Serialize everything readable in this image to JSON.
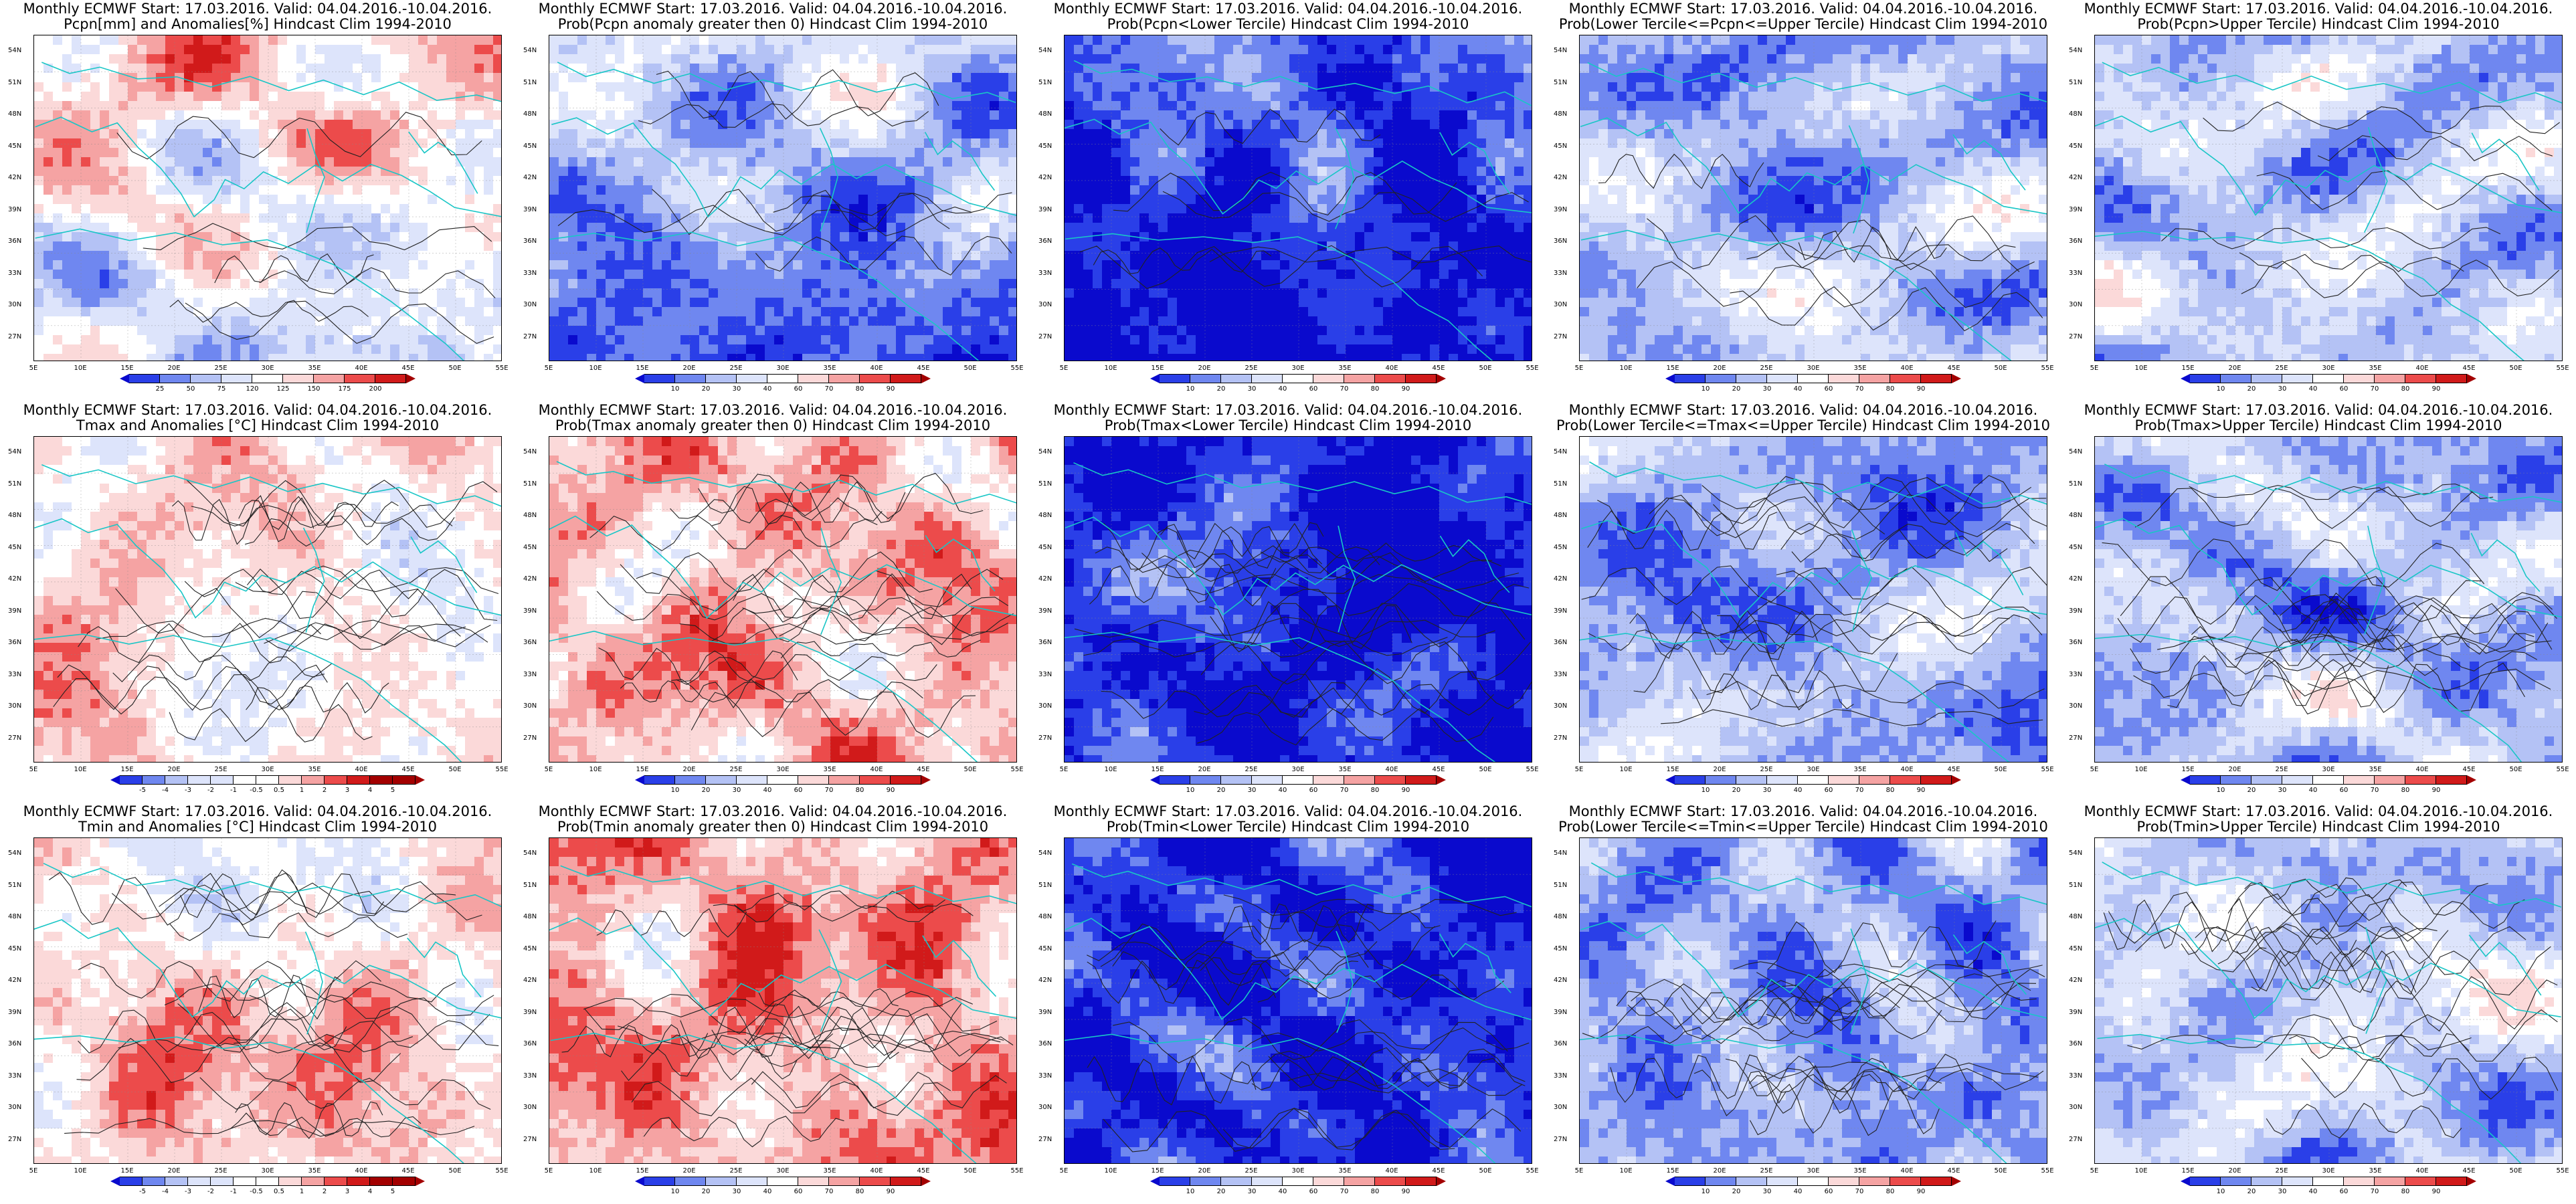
{
  "colors": {
    "deep_blue": "#0a0acd",
    "blue": "#2a3fe8",
    "mid_blue": "#6f87f0",
    "light_blue": "#b4c2f5",
    "pale_blue": "#dde4fb",
    "white": "#ffffff",
    "pale_red": "#fbd9d9",
    "light_red": "#f5a3a3",
    "red": "#ec4b4b",
    "dark_red": "#d11a1a",
    "deep_red": "#a30000",
    "coast": "#19c6c6",
    "contour": "#222222"
  },
  "lat_labels": [
    "54N",
    "51N",
    "48N",
    "45N",
    "42N",
    "39N",
    "36N",
    "33N",
    "30N",
    "27N"
  ],
  "lon_labels": [
    "5E",
    "10E",
    "15E",
    "20E",
    "25E",
    "30E",
    "35E",
    "40E",
    "45E",
    "50E",
    "55E"
  ],
  "panels": [
    {
      "id": "p-r1c1",
      "t1": "Monthly ECMWF Start: 17.03.2016. Valid: 04.04.2016.-10.04.2016.",
      "t2": "Pcpn[mm] and Anomalies[%] Hindcast Clim 1994-2010",
      "scheme": "anom_pcpn",
      "bar": [
        "25",
        "50",
        "75",
        "120",
        "125",
        "150",
        "175",
        "200"
      ],
      "bar_kind": "pcpn"
    },
    {
      "id": "p-r1c2",
      "t1": "Monthly ECMWF Start: 17.03.2016. Valid: 04.04.2016.-10.04.2016.",
      "t2": "Prob(Pcpn anomaly greater then 0) Hindcast Clim 1994-2010",
      "scheme": "prob_blue_low",
      "bar": [
        "10",
        "20",
        "30",
        "40",
        "60",
        "70",
        "80",
        "90"
      ],
      "bar_kind": "prob"
    },
    {
      "id": "p-r1c3",
      "t1": "Monthly ECMWF Start: 17.03.2016. Valid: 04.04.2016.-10.04.2016.",
      "t2": "Prob(Pcpn<Lower Tercile) Hindcast Clim 1994-2010",
      "scheme": "prob_deep_blue",
      "bar": [
        "10",
        "20",
        "30",
        "40",
        "60",
        "70",
        "80",
        "90"
      ],
      "bar_kind": "prob"
    },
    {
      "id": "p-r1c4",
      "t1": "Monthly ECMWF Start: 17.03.2016. Valid: 04.04.2016.-10.04.2016.",
      "t2": "Prob(Lower Tercile<=Pcpn<=Upper Tercile) Hindcast Clim 1994-2010",
      "scheme": "prob_mixed",
      "bar": [
        "10",
        "20",
        "30",
        "40",
        "60",
        "70",
        "80",
        "90"
      ],
      "bar_kind": "prob"
    },
    {
      "id": "p-r1c5",
      "t1": "Monthly ECMWF Start: 17.03.2016. Valid: 04.04.2016.-10.04.2016.",
      "t2": "Prob(Pcpn>Upper Tercile) Hindcast Clim 1994-2010",
      "scheme": "prob_light",
      "bar": [
        "10",
        "20",
        "30",
        "40",
        "60",
        "70",
        "80",
        "90"
      ],
      "bar_kind": "prob"
    },
    {
      "id": "p-r2c1",
      "t1": "Monthly ECMWF Start: 17.03.2016. Valid: 04.04.2016.-10.04.2016.",
      "t2": "Tmax and Anomalies [°C] Hindcast Clim 1994-2010",
      "scheme": "warm_light",
      "bar": [
        "-5",
        "-4",
        "-3",
        "-2",
        "-1",
        "-0.5",
        "0.5",
        "1",
        "2",
        "3",
        "4",
        "5"
      ],
      "bar_kind": "temp"
    },
    {
      "id": "p-r2c2",
      "t1": "Monthly ECMWF Start: 17.03.2016. Valid: 04.04.2016.-10.04.2016.",
      "t2": "Prob(Tmax anomaly greater then 0) Hindcast Clim 1994-2010",
      "scheme": "warm_strong",
      "bar": [
        "10",
        "20",
        "30",
        "40",
        "60",
        "70",
        "80",
        "90"
      ],
      "bar_kind": "prob"
    },
    {
      "id": "p-r2c3",
      "t1": "Monthly ECMWF Start: 17.03.2016. Valid: 04.04.2016.-10.04.2016.",
      "t2": "Prob(Tmax<Lower Tercile) Hindcast Clim 1994-2010",
      "scheme": "prob_deep_blue2",
      "bar": [
        "10",
        "20",
        "30",
        "40",
        "60",
        "70",
        "80",
        "90"
      ],
      "bar_kind": "prob"
    },
    {
      "id": "p-r2c4",
      "t1": "Monthly ECMWF Start: 17.03.2016. Valid: 04.04.2016.-10.04.2016.",
      "t2": "Prob(Lower Tercile<=Tmax<=Upper Tercile) Hindcast Clim 1994-2010",
      "scheme": "prob_mixed2",
      "bar": [
        "10",
        "20",
        "30",
        "40",
        "60",
        "70",
        "80",
        "90"
      ],
      "bar_kind": "prob"
    },
    {
      "id": "p-r2c5",
      "t1": "Monthly ECMWF Start: 17.03.2016. Valid: 04.04.2016.-10.04.2016.",
      "t2": "Prob(Tmax>Upper Tercile) Hindcast Clim 1994-2010",
      "scheme": "prob_light2",
      "bar": [
        "10",
        "20",
        "30",
        "40",
        "60",
        "70",
        "80",
        "90"
      ],
      "bar_kind": "prob"
    },
    {
      "id": "p-r3c1",
      "t1": "Monthly ECMWF Start: 17.03.2016. Valid: 04.04.2016.-10.04.2016.",
      "t2": "Tmin and Anomalies [°C] Hindcast Clim 1994-2010",
      "scheme": "warm_light2",
      "bar": [
        "-5",
        "-4",
        "-3",
        "-2",
        "-1",
        "-0.5",
        "0.5",
        "1",
        "2",
        "3",
        "4",
        "5"
      ],
      "bar_kind": "temp"
    },
    {
      "id": "p-r3c2",
      "t1": "Monthly ECMWF Start: 17.03.2016. Valid: 04.04.2016.-10.04.2016.",
      "t2": "Prob(Tmin anomaly greater then 0) Hindcast Clim 1994-2010",
      "scheme": "warm_strong2",
      "bar": [
        "10",
        "20",
        "30",
        "40",
        "60",
        "70",
        "80",
        "90"
      ],
      "bar_kind": "prob"
    },
    {
      "id": "p-r3c3",
      "t1": "Monthly ECMWF Start: 17.03.2016. Valid: 04.04.2016.-10.04.2016.",
      "t2": "Prob(Tmin<Lower Tercile) Hindcast Clim 1994-2010",
      "scheme": "prob_deep_blue3",
      "bar": [
        "10",
        "20",
        "30",
        "40",
        "60",
        "70",
        "80",
        "90"
      ],
      "bar_kind": "prob"
    },
    {
      "id": "p-r3c4",
      "t1": "Monthly ECMWF Start: 17.03.2016. Valid: 04.04.2016.-10.04.2016.",
      "t2": "Prob(Lower Tercile<=Tmin<=Upper Tercile) Hindcast Clim 1994-2010",
      "scheme": "prob_mixed3",
      "bar": [
        "10",
        "20",
        "30",
        "40",
        "60",
        "70",
        "80",
        "90"
      ],
      "bar_kind": "prob"
    },
    {
      "id": "p-r3c5",
      "t1": "Monthly ECMWF Start: 17.03.2016. Valid: 04.04.2016.-10.04.2016.",
      "t2": "Prob(Tmin>Upper Tercile) Hindcast Clim 1994-2010",
      "scheme": "prob_light3",
      "bar": [
        "10",
        "20",
        "30",
        "40",
        "60",
        "70",
        "80",
        "90"
      ],
      "bar_kind": "prob"
    }
  ]
}
